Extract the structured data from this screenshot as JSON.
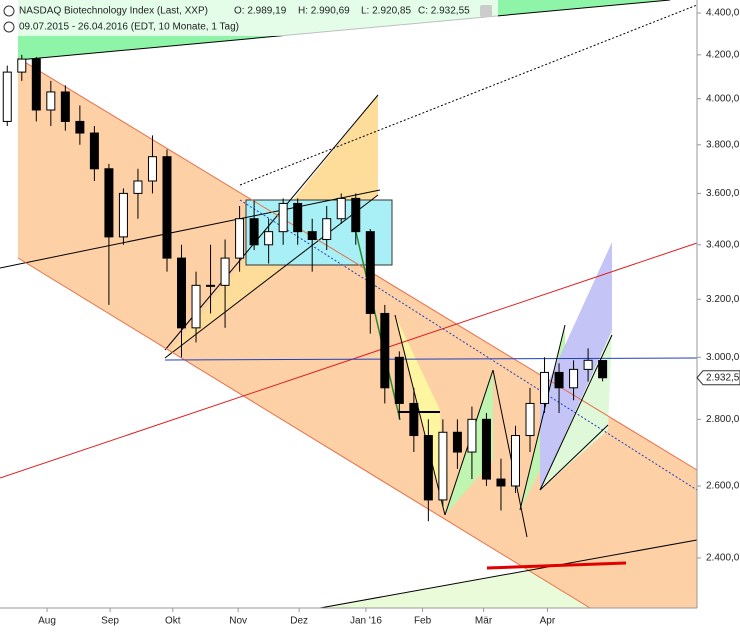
{
  "chart_data": {
    "type": "candlestick",
    "title": "NASDAQ Biotechnology Index (Last, XXP)",
    "quote": [
      "O: 2.989,19",
      "H: 2.990,69",
      "L: 2.920,85",
      "C: 2.932,55"
    ],
    "subtitle": "09.07.2015 - 26.04.2016 (EDT, 10 Monate, 1 Tag)",
    "categories": [
      null,
      null,
      null,
      null,
      null,
      null,
      null,
      null,
      null,
      null,
      null,
      null,
      null,
      null,
      null,
      null,
      null,
      null,
      null,
      null,
      null,
      null,
      null,
      null,
      null,
      null,
      null,
      null,
      null,
      null,
      null,
      null,
      null,
      null,
      null,
      null,
      null,
      null,
      null,
      null,
      null,
      null
    ],
    "open": [
      3900,
      4120,
      4180,
      3950,
      4030,
      3900,
      3850,
      3700,
      3430,
      3600,
      3650,
      3750,
      3350,
      3100,
      3250,
      3250,
      3350,
      3500,
      3400,
      3450,
      3560,
      3450,
      3420,
      3500,
      3580,
      3450,
      3150,
      3000,
      2850,
      2750,
      2560,
      2760,
      2700,
      2800,
      2620,
      2600,
      2750,
      2850,
      2950,
      2900,
      2960,
      2989.19
    ],
    "high": [
      4150,
      4200,
      4190,
      4080,
      4060,
      3970,
      3880,
      3720,
      3620,
      3700,
      3840,
      3780,
      3400,
      3300,
      3400,
      3420,
      3550,
      3570,
      3500,
      3580,
      3580,
      3500,
      3550,
      3600,
      3600,
      3460,
      3180,
      3020,
      2900,
      2800,
      2800,
      2800,
      2840,
      2820,
      2680,
      2780,
      2900,
      3000,
      2980,
      2990,
      3030,
      2990.69
    ],
    "low": [
      3880,
      4080,
      3900,
      3880,
      3860,
      3800,
      3650,
      3180,
      3400,
      3500,
      3600,
      3300,
      3000,
      3050,
      3150,
      3100,
      3300,
      3380,
      3330,
      3400,
      3400,
      3300,
      3380,
      3480,
      3400,
      3080,
      2850,
      2800,
      2700,
      2500,
      2540,
      2650,
      2620,
      2600,
      2530,
      2580,
      2700,
      2820,
      2820,
      2860,
      2920,
      2920.85
    ],
    "close": [
      4120,
      4180,
      3950,
      4030,
      3900,
      3850,
      3700,
      3430,
      3600,
      3650,
      3750,
      3350,
      3100,
      3250,
      3250,
      3350,
      3500,
      3400,
      3450,
      3560,
      3450,
      3420,
      3500,
      3580,
      3450,
      3150,
      2900,
      2850,
      2750,
      2560,
      2760,
      2700,
      2800,
      2620,
      2600,
      2750,
      2850,
      2950,
      2900,
      2960,
      2990,
      2932.55
    ],
    "xlim": [
      0,
      48
    ],
    "xticks": [
      {
        "value": 3.24,
        "label": "Aug"
      },
      {
        "value": 7.58,
        "label": "Sep"
      },
      {
        "value": 11.9,
        "label": "Okt"
      },
      {
        "value": 16.4,
        "label": "Nov"
      },
      {
        "value": 20.6,
        "label": "Dez"
      },
      {
        "value": 25.2,
        "label": "Jan '16"
      },
      {
        "value": 29.1,
        "label": "Feb"
      },
      {
        "value": 33.3,
        "label": "Mär"
      },
      {
        "value": 37.7,
        "label": "Apr"
      }
    ],
    "ylim": [
      2270,
      4464
    ],
    "log_scale": true,
    "yticks": [
      {
        "value": 2400,
        "label": "2.400,0"
      },
      {
        "value": 2600,
        "label": "2.600,0"
      },
      {
        "value": 2800,
        "label": "2.800,0"
      },
      {
        "value": 3000,
        "label": "3.000,0"
      },
      {
        "value": 3200,
        "label": "3.200,0"
      },
      {
        "value": 3400,
        "label": "3.400,0"
      },
      {
        "value": 3600,
        "label": "3.600,0"
      },
      {
        "value": 3800,
        "label": "3.800,0"
      },
      {
        "value": 4000,
        "label": "4.000,0"
      },
      {
        "value": 4200,
        "label": "4.200,0"
      },
      {
        "value": 4400,
        "label": "4.400,0"
      }
    ],
    "last_price": {
      "value": 2932.55,
      "label": "2.932,5"
    },
    "up_color": "#ffffff",
    "down_color": "#000000"
  }
}
